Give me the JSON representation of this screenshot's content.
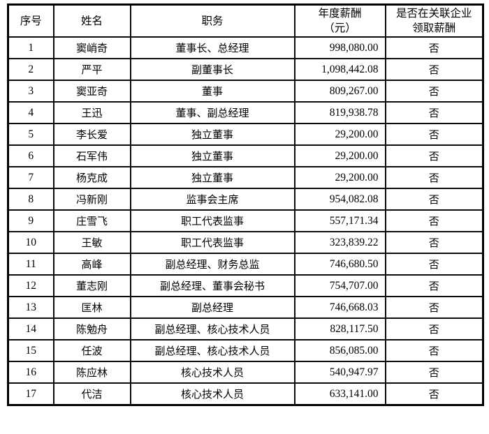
{
  "table": {
    "headers": {
      "index": "序号",
      "name": "姓名",
      "title": "职务",
      "salary_line1": "年度薪酬",
      "salary_line2": "（元）",
      "related_line1": "是否在关联企业",
      "related_line2": "领取薪酬"
    },
    "rows": [
      {
        "no": "1",
        "name": "窦峭奇",
        "title": "董事长、总经理",
        "salary": "998,080.00",
        "related": "否"
      },
      {
        "no": "2",
        "name": "严平",
        "title": "副董事长",
        "salary": "1,098,442.08",
        "related": "否"
      },
      {
        "no": "3",
        "name": "窦亚奇",
        "title": "董事",
        "salary": "809,267.00",
        "related": "否"
      },
      {
        "no": "4",
        "name": "王迅",
        "title": "董事、副总经理",
        "salary": "819,938.78",
        "related": "否"
      },
      {
        "no": "5",
        "name": "李长爱",
        "title": "独立董事",
        "salary": "29,200.00",
        "related": "否"
      },
      {
        "no": "6",
        "name": "石军伟",
        "title": "独立董事",
        "salary": "29,200.00",
        "related": "否"
      },
      {
        "no": "7",
        "name": "杨克成",
        "title": "独立董事",
        "salary": "29,200.00",
        "related": "否"
      },
      {
        "no": "8",
        "name": "冯新刚",
        "title": "监事会主席",
        "salary": "954,082.08",
        "related": "否"
      },
      {
        "no": "9",
        "name": "庄雪飞",
        "title": "职工代表监事",
        "salary": "557,171.34",
        "related": "否"
      },
      {
        "no": "10",
        "name": "王敏",
        "title": "职工代表监事",
        "salary": "323,839.22",
        "related": "否"
      },
      {
        "no": "11",
        "name": "高峰",
        "title": "副总经理、财务总监",
        "salary": "746,680.50",
        "related": "否"
      },
      {
        "no": "12",
        "name": "董志刚",
        "title": "副总经理、董事会秘书",
        "salary": "754,707.00",
        "related": "否"
      },
      {
        "no": "13",
        "name": "匡林",
        "title": "副总经理",
        "salary": "746,668.03",
        "related": "否"
      },
      {
        "no": "14",
        "name": "陈勉舟",
        "title": "副总经理、核心技术人员",
        "salary": "828,117.50",
        "related": "否"
      },
      {
        "no": "15",
        "name": "任波",
        "title": "副总经理、核心技术人员",
        "salary": "856,085.00",
        "related": "否"
      },
      {
        "no": "16",
        "name": "陈应林",
        "title": "核心技术人员",
        "salary": "540,947.97",
        "related": "否"
      },
      {
        "no": "17",
        "name": "代洁",
        "title": "核心技术人员",
        "salary": "633,141.00",
        "related": "否"
      }
    ]
  }
}
